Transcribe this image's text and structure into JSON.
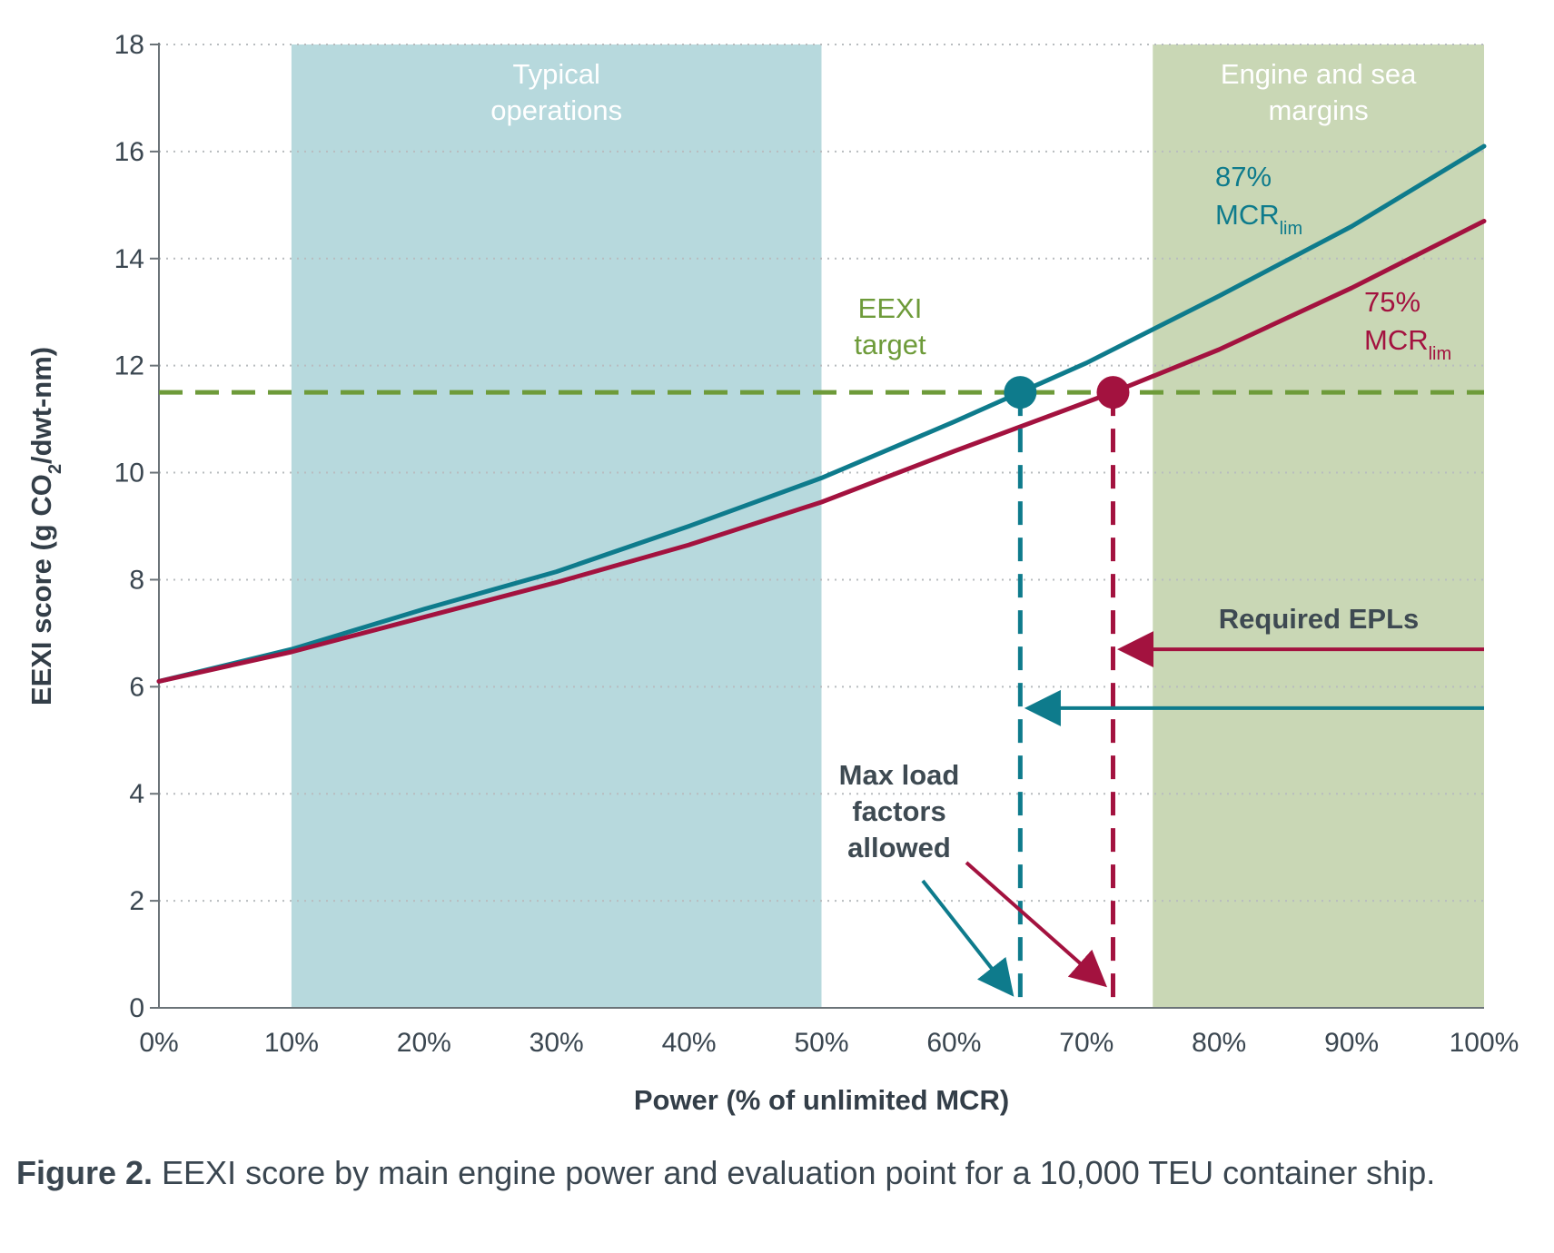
{
  "chart_data": {
    "type": "line",
    "xlabel": "Power (% of unlimited MCR)",
    "ylabel_parts": {
      "before": "EEXI score (g CO",
      "sub": "2",
      "after": "/dwt-nm)"
    },
    "xlim": [
      0,
      100
    ],
    "ylim": [
      0,
      18
    ],
    "x_ticks": [
      0,
      10,
      20,
      30,
      40,
      50,
      60,
      70,
      80,
      90,
      100
    ],
    "x_tick_labels": [
      "0%",
      "10%",
      "20%",
      "30%",
      "40%",
      "50%",
      "60%",
      "70%",
      "80%",
      "90%",
      "100%"
    ],
    "y_ticks": [
      0,
      2,
      4,
      6,
      8,
      10,
      12,
      14,
      16,
      18
    ],
    "y_tick_labels": [
      "0",
      "2",
      "4",
      "6",
      "8",
      "10",
      "12",
      "14",
      "16",
      "18"
    ],
    "grid": "horizontal dotted",
    "bands": [
      {
        "label_lines": [
          "Typical",
          "operations"
        ],
        "x_start": 10,
        "x_end": 50,
        "color": "#b7d9dd"
      },
      {
        "label_lines": [
          "Engine and sea",
          "margins"
        ],
        "x_start": 75,
        "x_end": 100,
        "color": "#c9d7b5"
      }
    ],
    "series": [
      {
        "name_main": "87%",
        "name_line2": "MCR",
        "name_sub": "lim",
        "color": "#0e7b8c",
        "x": [
          0,
          10,
          20,
          30,
          40,
          50,
          60,
          65,
          70,
          80,
          90,
          100
        ],
        "y": [
          6.1,
          6.7,
          7.45,
          8.15,
          9.0,
          9.9,
          10.95,
          11.5,
          12.05,
          13.3,
          14.6,
          16.1
        ]
      },
      {
        "name_main": "75%",
        "name_line2": "MCR",
        "name_sub": "lim",
        "color": "#a3123f",
        "x": [
          0,
          10,
          20,
          30,
          40,
          50,
          60,
          72,
          80,
          90,
          100
        ],
        "y": [
          6.1,
          6.65,
          7.3,
          7.95,
          8.65,
          9.45,
          10.4,
          11.5,
          12.3,
          13.45,
          14.7
        ]
      }
    ],
    "target": {
      "label_lines": [
        "EEXI",
        "target"
      ],
      "y": 11.5,
      "color": "#6e9b3a"
    },
    "evaluation_points": [
      {
        "x": 65,
        "y": 11.5,
        "color": "#0e7b8c"
      },
      {
        "x": 72,
        "y": 11.5,
        "color": "#a3123f"
      }
    ],
    "epl_annotation": {
      "label": "Required EPLs",
      "arrows": [
        {
          "y": 6.7,
          "x_from": 100,
          "x_to": 73,
          "color": "#a3123f"
        },
        {
          "y": 5.6,
          "x_from": 100,
          "x_to": 66,
          "color": "#0e7b8c"
        }
      ]
    },
    "max_load_annotation": {
      "label_lines": [
        "Max load",
        "factors",
        "allowed"
      ]
    }
  },
  "caption": {
    "bold": "Figure 2.",
    "text": " EEXI score by main engine power and evaluation point for a 10,000 TEU container ship."
  }
}
